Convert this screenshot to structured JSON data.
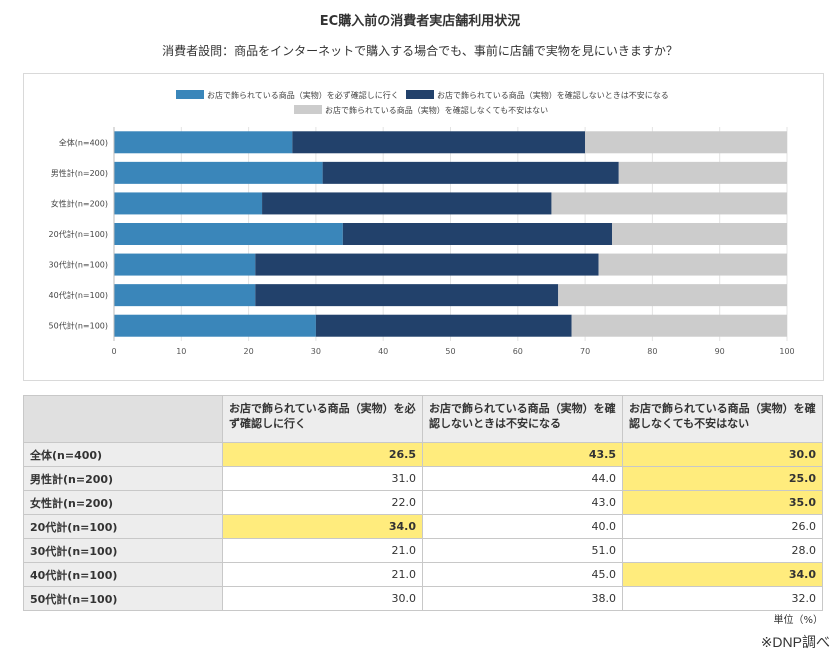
{
  "title": "EC購入前の消費者実店舗利用状況",
  "subtitle": "消費者設問：商品をインターネットで購入する場合でも、事前に店舗で実物を見にいきますか？",
  "chart_data": {
    "type": "bar",
    "stacked": true,
    "orientation": "horizontal",
    "categories": [
      "全体(n=400)",
      "男性計(n=200)",
      "女性計(n=200)",
      "20代計(n=100)",
      "30代計(n=100)",
      "40代計(n=100)",
      "50代計(n=100)"
    ],
    "series": [
      {
        "name": "お店で飾られている商品（実物）を必ず確認しに行く",
        "color": "#3a86ba",
        "values": [
          26.5,
          31.0,
          22.0,
          34.0,
          21.0,
          21.0,
          30.0
        ]
      },
      {
        "name": "お店で飾られている商品（実物）を確認しないときは不安になる",
        "color": "#22416b",
        "values": [
          43.5,
          44.0,
          43.0,
          40.0,
          51.0,
          45.0,
          38.0
        ]
      },
      {
        "name": "お店で飾られている商品（実物）を確認しなくても不安はない",
        "color": "#cccccc",
        "values": [
          30.0,
          25.0,
          35.0,
          26.0,
          28.0,
          34.0,
          32.0
        ]
      }
    ],
    "xlim": [
      0,
      100
    ],
    "xticks": [
      "0",
      "10",
      "20",
      "30",
      "40",
      "50",
      "60",
      "70",
      "80",
      "90",
      "100"
    ],
    "grid": true,
    "legend": "top"
  },
  "table": {
    "headers": [
      "お店で飾られている商品（実物）を必ず確認しに行く",
      "お店で飾られている商品（実物）を確認しないときは不安になる",
      "お店で飾られている商品（実物）を確認しなくても不安はない"
    ],
    "rows": [
      {
        "label": "全体(n=400)",
        "cells": [
          "26.5",
          "43.5",
          "30.0"
        ],
        "highlight": [
          true,
          true,
          true
        ]
      },
      {
        "label": "男性計(n=200)",
        "cells": [
          "31.0",
          "44.0",
          "25.0"
        ],
        "highlight": [
          false,
          false,
          true
        ]
      },
      {
        "label": "女性計(n=200)",
        "cells": [
          "22.0",
          "43.0",
          "35.0"
        ],
        "highlight": [
          false,
          false,
          true
        ]
      },
      {
        "label": "20代計(n=100)",
        "cells": [
          "34.0",
          "40.0",
          "26.0"
        ],
        "highlight": [
          true,
          false,
          false
        ]
      },
      {
        "label": "30代計(n=100)",
        "cells": [
          "21.0",
          "51.0",
          "28.0"
        ],
        "highlight": [
          false,
          false,
          false
        ]
      },
      {
        "label": "40代計(n=100)",
        "cells": [
          "21.0",
          "45.0",
          "34.0"
        ],
        "highlight": [
          false,
          false,
          true
        ]
      },
      {
        "label": "50代計(n=100)",
        "cells": [
          "30.0",
          "38.0",
          "32.0"
        ],
        "highlight": [
          false,
          false,
          false
        ]
      }
    ],
    "highlight_color": "#ffec7d"
  },
  "unit_label": "単位（%）",
  "source_label": "※DNP調べ"
}
